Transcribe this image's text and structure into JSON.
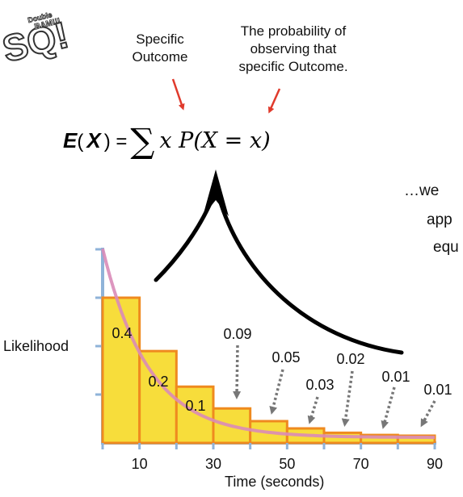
{
  "header": {
    "specific_outcome": "Specific\nOutcome",
    "probability_note": "The probability of\nobserving that\nspecific Outcome."
  },
  "formula": {
    "lhs_e": "E",
    "lhs_open": "(",
    "lhs_x": "X",
    "lhs_close": ") =",
    "sigma": "∑",
    "rhs": "x  P(X = x)"
  },
  "side_text": {
    "line1": "…we",
    "line2": "app",
    "line3": "equ"
  },
  "logo": {
    "big": "SQ!",
    "small": "Double\nBAM!!!"
  },
  "chart_data": {
    "type": "bar",
    "xlabel": "Time (seconds)",
    "ylabel": "Likelihood",
    "x_ticks": [
      "10",
      "30",
      "50",
      "70",
      "90"
    ],
    "bins": [
      {
        "start": 0,
        "end": 10,
        "label": "0.4"
      },
      {
        "start": 10,
        "end": 20,
        "label": "0.2"
      },
      {
        "start": 20,
        "end": 30,
        "label": "0.1"
      },
      {
        "start": 30,
        "end": 40,
        "label": "0.09"
      },
      {
        "start": 40,
        "end": 50,
        "label": "0.05"
      },
      {
        "start": 50,
        "end": 60,
        "label": "0.03"
      },
      {
        "start": 60,
        "end": 70,
        "label": "0.02"
      },
      {
        "start": 70,
        "end": 80,
        "label": "0.01"
      },
      {
        "start": 80,
        "end": 90,
        "label": "0.01"
      }
    ],
    "bar_values": [
      0.4,
      0.2,
      0.1,
      0.09,
      0.05,
      0.03,
      0.02,
      0.01,
      0.01
    ],
    "colors": {
      "bar_fill": "#f7dd3b",
      "bar_edge": "#ef8a1f",
      "curve": "#d98bb8",
      "axis": "#8fb3d9",
      "arrow_red": "#e03a2c"
    }
  }
}
